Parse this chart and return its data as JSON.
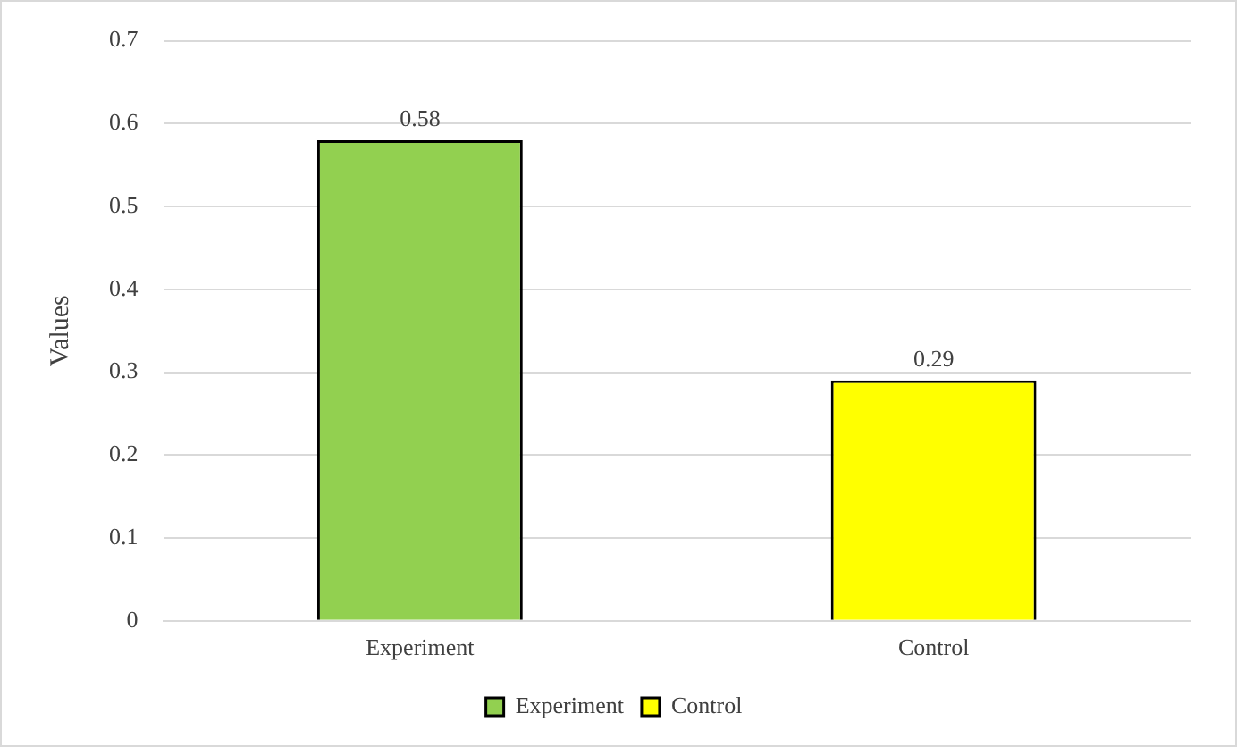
{
  "chart_data": {
    "type": "bar",
    "ylabel": "Values",
    "categories": [
      "Experiment",
      "Control"
    ],
    "series": [
      {
        "name": "Experiment",
        "color": "#92d050",
        "values": [
          0.58,
          null
        ]
      },
      {
        "name": "Control",
        "color": "#ffff00",
        "values": [
          null,
          0.29
        ]
      }
    ],
    "ylim": [
      0,
      0.7
    ],
    "yticks": [
      0,
      0.1,
      0.2,
      0.3,
      0.4,
      0.5,
      0.6,
      0.7
    ],
    "grid": "y",
    "legend": "bottom",
    "data_labels": true
  }
}
